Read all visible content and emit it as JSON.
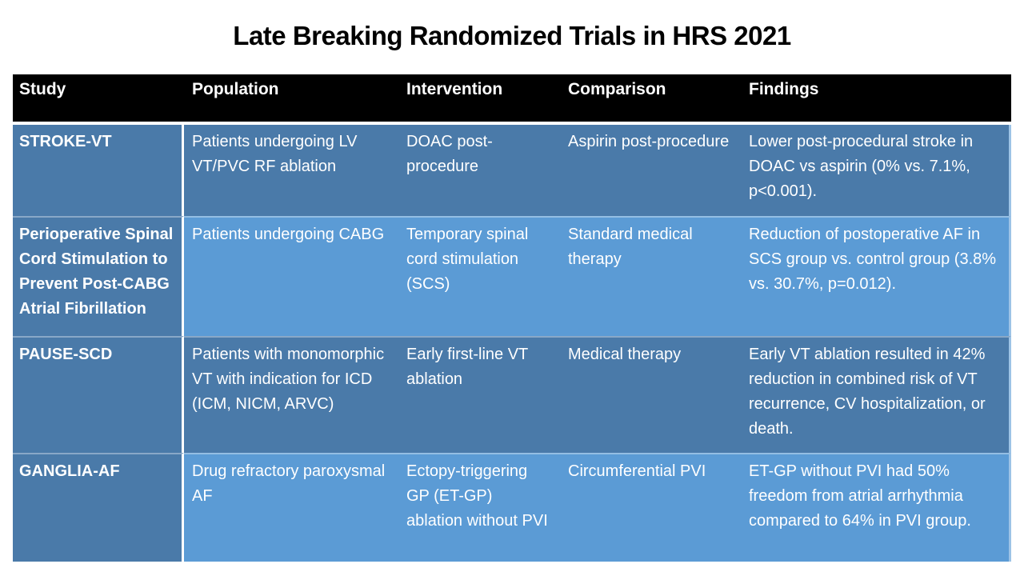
{
  "title": "Late Breaking Randomized Trials in HRS 2021",
  "colors": {
    "header_bg": "#000000",
    "header_text": "#ffffff",
    "row_dark": "#4A7AA9",
    "row_light": "#5B9BD5",
    "body_text": "#ffffff",
    "title_text": "#000000",
    "divider": "#ffffff",
    "right_edge": "#9dc3e6"
  },
  "table": {
    "columns": [
      "Study",
      "Population",
      "Intervention",
      "Comparison",
      "Findings"
    ],
    "rows": [
      [
        "STROKE-VT",
        "Patients undergoing LV VT/PVC RF ablation",
        "DOAC post-procedure",
        "Aspirin post-procedure",
        "Lower post-procedural stroke in DOAC vs aspirin (0% vs. 7.1%, p<0.001)."
      ],
      [
        "Perioperative Spinal Cord Stimulation to Prevent Post-CABG Atrial Fibrillation",
        "Patients undergoing CABG",
        "Temporary spinal cord stimulation (SCS)",
        "Standard medical therapy",
        "Reduction of postoperative AF in SCS group vs. control group (3.8% vs. 30.7%, p=0.012)."
      ],
      [
        "PAUSE-SCD",
        "Patients with monomorphic VT with indication for ICD (ICM, NICM, ARVC)",
        "Early first-line VT ablation",
        "Medical therapy",
        "Early VT ablation resulted in 42% reduction in combined risk of VT recurrence, CV hospitalization, or death."
      ],
      [
        "GANGLIA-AF",
        "Drug refractory paroxysmal AF",
        "Ectopy-triggering GP (ET-GP) ablation without PVI",
        "Circumferential PVI",
        "ET-GP without PVI had 50% freedom from atrial arrhythmia compared to 64% in PVI group."
      ]
    ]
  },
  "chart_data": {
    "type": "table",
    "title": "Late Breaking Randomized Trials in HRS 2021",
    "columns": [
      "Study",
      "Population",
      "Intervention",
      "Comparison",
      "Findings"
    ],
    "rows": [
      [
        "STROKE-VT",
        "Patients undergoing LV VT/PVC RF ablation",
        "DOAC post-procedure",
        "Aspirin post-procedure",
        "Lower post-procedural stroke in DOAC vs aspirin (0% vs. 7.1%, p<0.001)."
      ],
      [
        "Perioperative Spinal Cord Stimulation to Prevent Post-CABG Atrial Fibrillation",
        "Patients undergoing CABG",
        "Temporary spinal cord stimulation (SCS)",
        "Standard medical therapy",
        "Reduction of postoperative AF in SCS group vs. control group (3.8% vs. 30.7%, p=0.012)."
      ],
      [
        "PAUSE-SCD",
        "Patients with monomorphic VT with indication for ICD (ICM, NICM, ARVC)",
        "Early first-line VT ablation",
        "Medical therapy",
        "Early VT ablation resulted in 42% reduction in combined risk of VT recurrence, CV hospitalization, or death."
      ],
      [
        "GANGLIA-AF",
        "Drug refractory paroxysmal AF",
        "Ectopy-triggering GP (ET-GP) ablation without PVI",
        "Circumferential PVI",
        "ET-GP without PVI had 50% freedom from atrial arrhythmia compared to 64% in PVI group."
      ]
    ]
  }
}
